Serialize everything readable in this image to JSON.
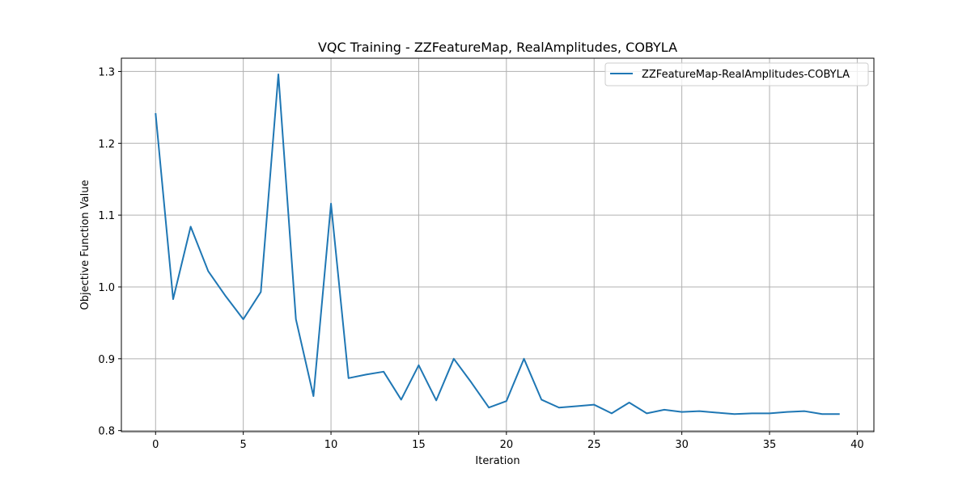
{
  "chart_data": {
    "type": "line",
    "title": "VQC Training - ZZFeatureMap, RealAmplitudes, COBYLA",
    "xlabel": "Iteration",
    "ylabel": "Objective Function Value",
    "xlim": [
      -1.95,
      40.95
    ],
    "ylim": [
      0.7985,
      1.3185
    ],
    "xticks": [
      0,
      5,
      10,
      15,
      20,
      25,
      30,
      35,
      40
    ],
    "yticks": [
      0.8,
      0.9,
      1.0,
      1.1,
      1.2,
      1.3
    ],
    "xtick_labels": [
      "0",
      "5",
      "10",
      "15",
      "20",
      "25",
      "30",
      "35",
      "40"
    ],
    "ytick_labels": [
      "0.8",
      "0.9",
      "1.0",
      "1.1",
      "1.2",
      "1.3"
    ],
    "grid": true,
    "legend_position": "top-right",
    "series": [
      {
        "name": "ZZFeatureMap-RealAmplitudes-COBYLA",
        "color": "#1f77b4",
        "x": [
          0,
          1,
          2,
          3,
          4,
          5,
          6,
          7,
          8,
          9,
          10,
          11,
          12,
          13,
          14,
          15,
          16,
          17,
          18,
          19,
          20,
          21,
          22,
          23,
          24,
          25,
          26,
          27,
          28,
          29,
          30,
          31,
          32,
          33,
          34,
          35,
          36,
          37,
          38,
          39
        ],
        "y": [
          1.242,
          0.983,
          1.084,
          1.022,
          0.987,
          0.955,
          0.993,
          1.296,
          0.955,
          0.848,
          1.116,
          0.873,
          0.878,
          0.882,
          0.843,
          0.891,
          0.842,
          0.9,
          0.867,
          0.832,
          0.841,
          0.9,
          0.843,
          0.832,
          0.834,
          0.836,
          0.824,
          0.839,
          0.824,
          0.829,
          0.826,
          0.827,
          0.825,
          0.823,
          0.824,
          0.824,
          0.826,
          0.827,
          0.823,
          0.823
        ]
      }
    ]
  }
}
